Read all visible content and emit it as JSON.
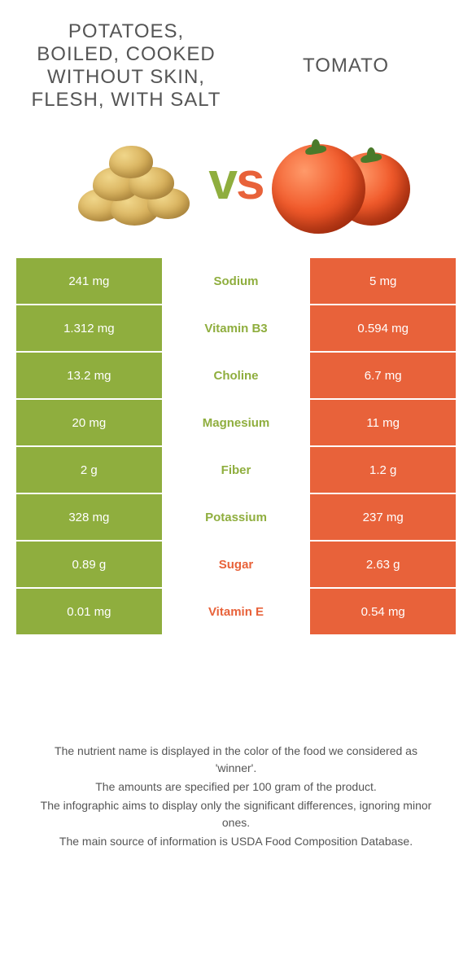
{
  "colors": {
    "left": "#8fae3e",
    "right": "#e8623a",
    "mid_bg": "#ffffff",
    "text_dark": "#555555",
    "value_text": "#ffffff"
  },
  "header": {
    "left_title": "Potatoes, boiled, cooked without skin, flesh, with salt",
    "right_title": "Tomato",
    "vs": [
      "v",
      "s"
    ]
  },
  "rows": [
    {
      "nutrient": "Sodium",
      "left": "241 mg",
      "right": "5 mg",
      "winner": "left"
    },
    {
      "nutrient": "Vitamin B3",
      "left": "1.312 mg",
      "right": "0.594 mg",
      "winner": "left"
    },
    {
      "nutrient": "Choline",
      "left": "13.2 mg",
      "right": "6.7 mg",
      "winner": "left"
    },
    {
      "nutrient": "Magnesium",
      "left": "20 mg",
      "right": "11 mg",
      "winner": "left"
    },
    {
      "nutrient": "Fiber",
      "left": "2 g",
      "right": "1.2 g",
      "winner": "left"
    },
    {
      "nutrient": "Potassium",
      "left": "328 mg",
      "right": "237 mg",
      "winner": "left"
    },
    {
      "nutrient": "Sugar",
      "left": "0.89 g",
      "right": "2.63 g",
      "winner": "right"
    },
    {
      "nutrient": "Vitamin E",
      "left": "0.01 mg",
      "right": "0.54 mg",
      "winner": "right"
    }
  ],
  "footer": [
    "The nutrient name is displayed in the color of the food we considered as 'winner'.",
    "The amounts are specified per 100 gram of the product.",
    "The infographic aims to display only the significant differences, ignoring minor ones.",
    "The main source of information is USDA Food Composition Database."
  ]
}
